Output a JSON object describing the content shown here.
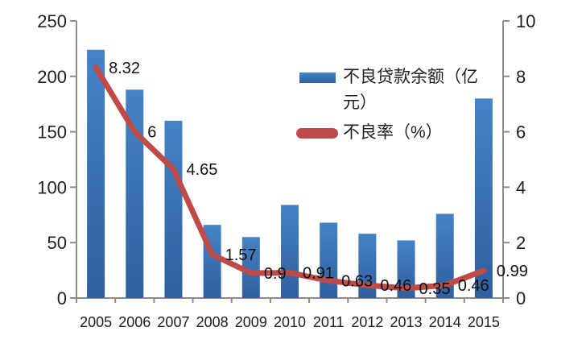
{
  "chart_data": {
    "type": "combo",
    "title": "",
    "categories": [
      "2005",
      "2006",
      "2007",
      "2008",
      "2009",
      "2010",
      "2011",
      "2012",
      "2013",
      "2014",
      "2015"
    ],
    "series": [
      {
        "name": "不良贷款余额（亿元）",
        "type": "bar",
        "axis": "left",
        "color_top": "#4583C6",
        "color_bottom": "#2F5F9E",
        "values": [
          224,
          188,
          160,
          66,
          55,
          84,
          68,
          58,
          52,
          76,
          180
        ]
      },
      {
        "name": "不良率（%）",
        "type": "line",
        "axis": "right",
        "color": "#BE4B48",
        "values": [
          8.32,
          6,
          4.65,
          1.57,
          0.9,
          0.91,
          0.63,
          0.46,
          0.35,
          0.46,
          0.99
        ],
        "data_labels": [
          "8.32",
          "6",
          "4.65",
          "1.57",
          "0.9",
          "0.91",
          "0.63",
          "0.46",
          "0.35",
          "0.46",
          "0.99"
        ]
      }
    ],
    "left_axis": {
      "min": 0,
      "max": 250,
      "ticks": [
        "0",
        "50",
        "100",
        "150",
        "200",
        "250"
      ]
    },
    "right_axis": {
      "min": 0,
      "max": 10,
      "ticks": [
        "0",
        "2",
        "4",
        "6",
        "8",
        "10"
      ]
    },
    "grid": false,
    "legend_position": "upper-center-right",
    "axis_color": "#8C8C8C",
    "text_color": "#1F1F1F",
    "background": "#FFFFFF"
  }
}
